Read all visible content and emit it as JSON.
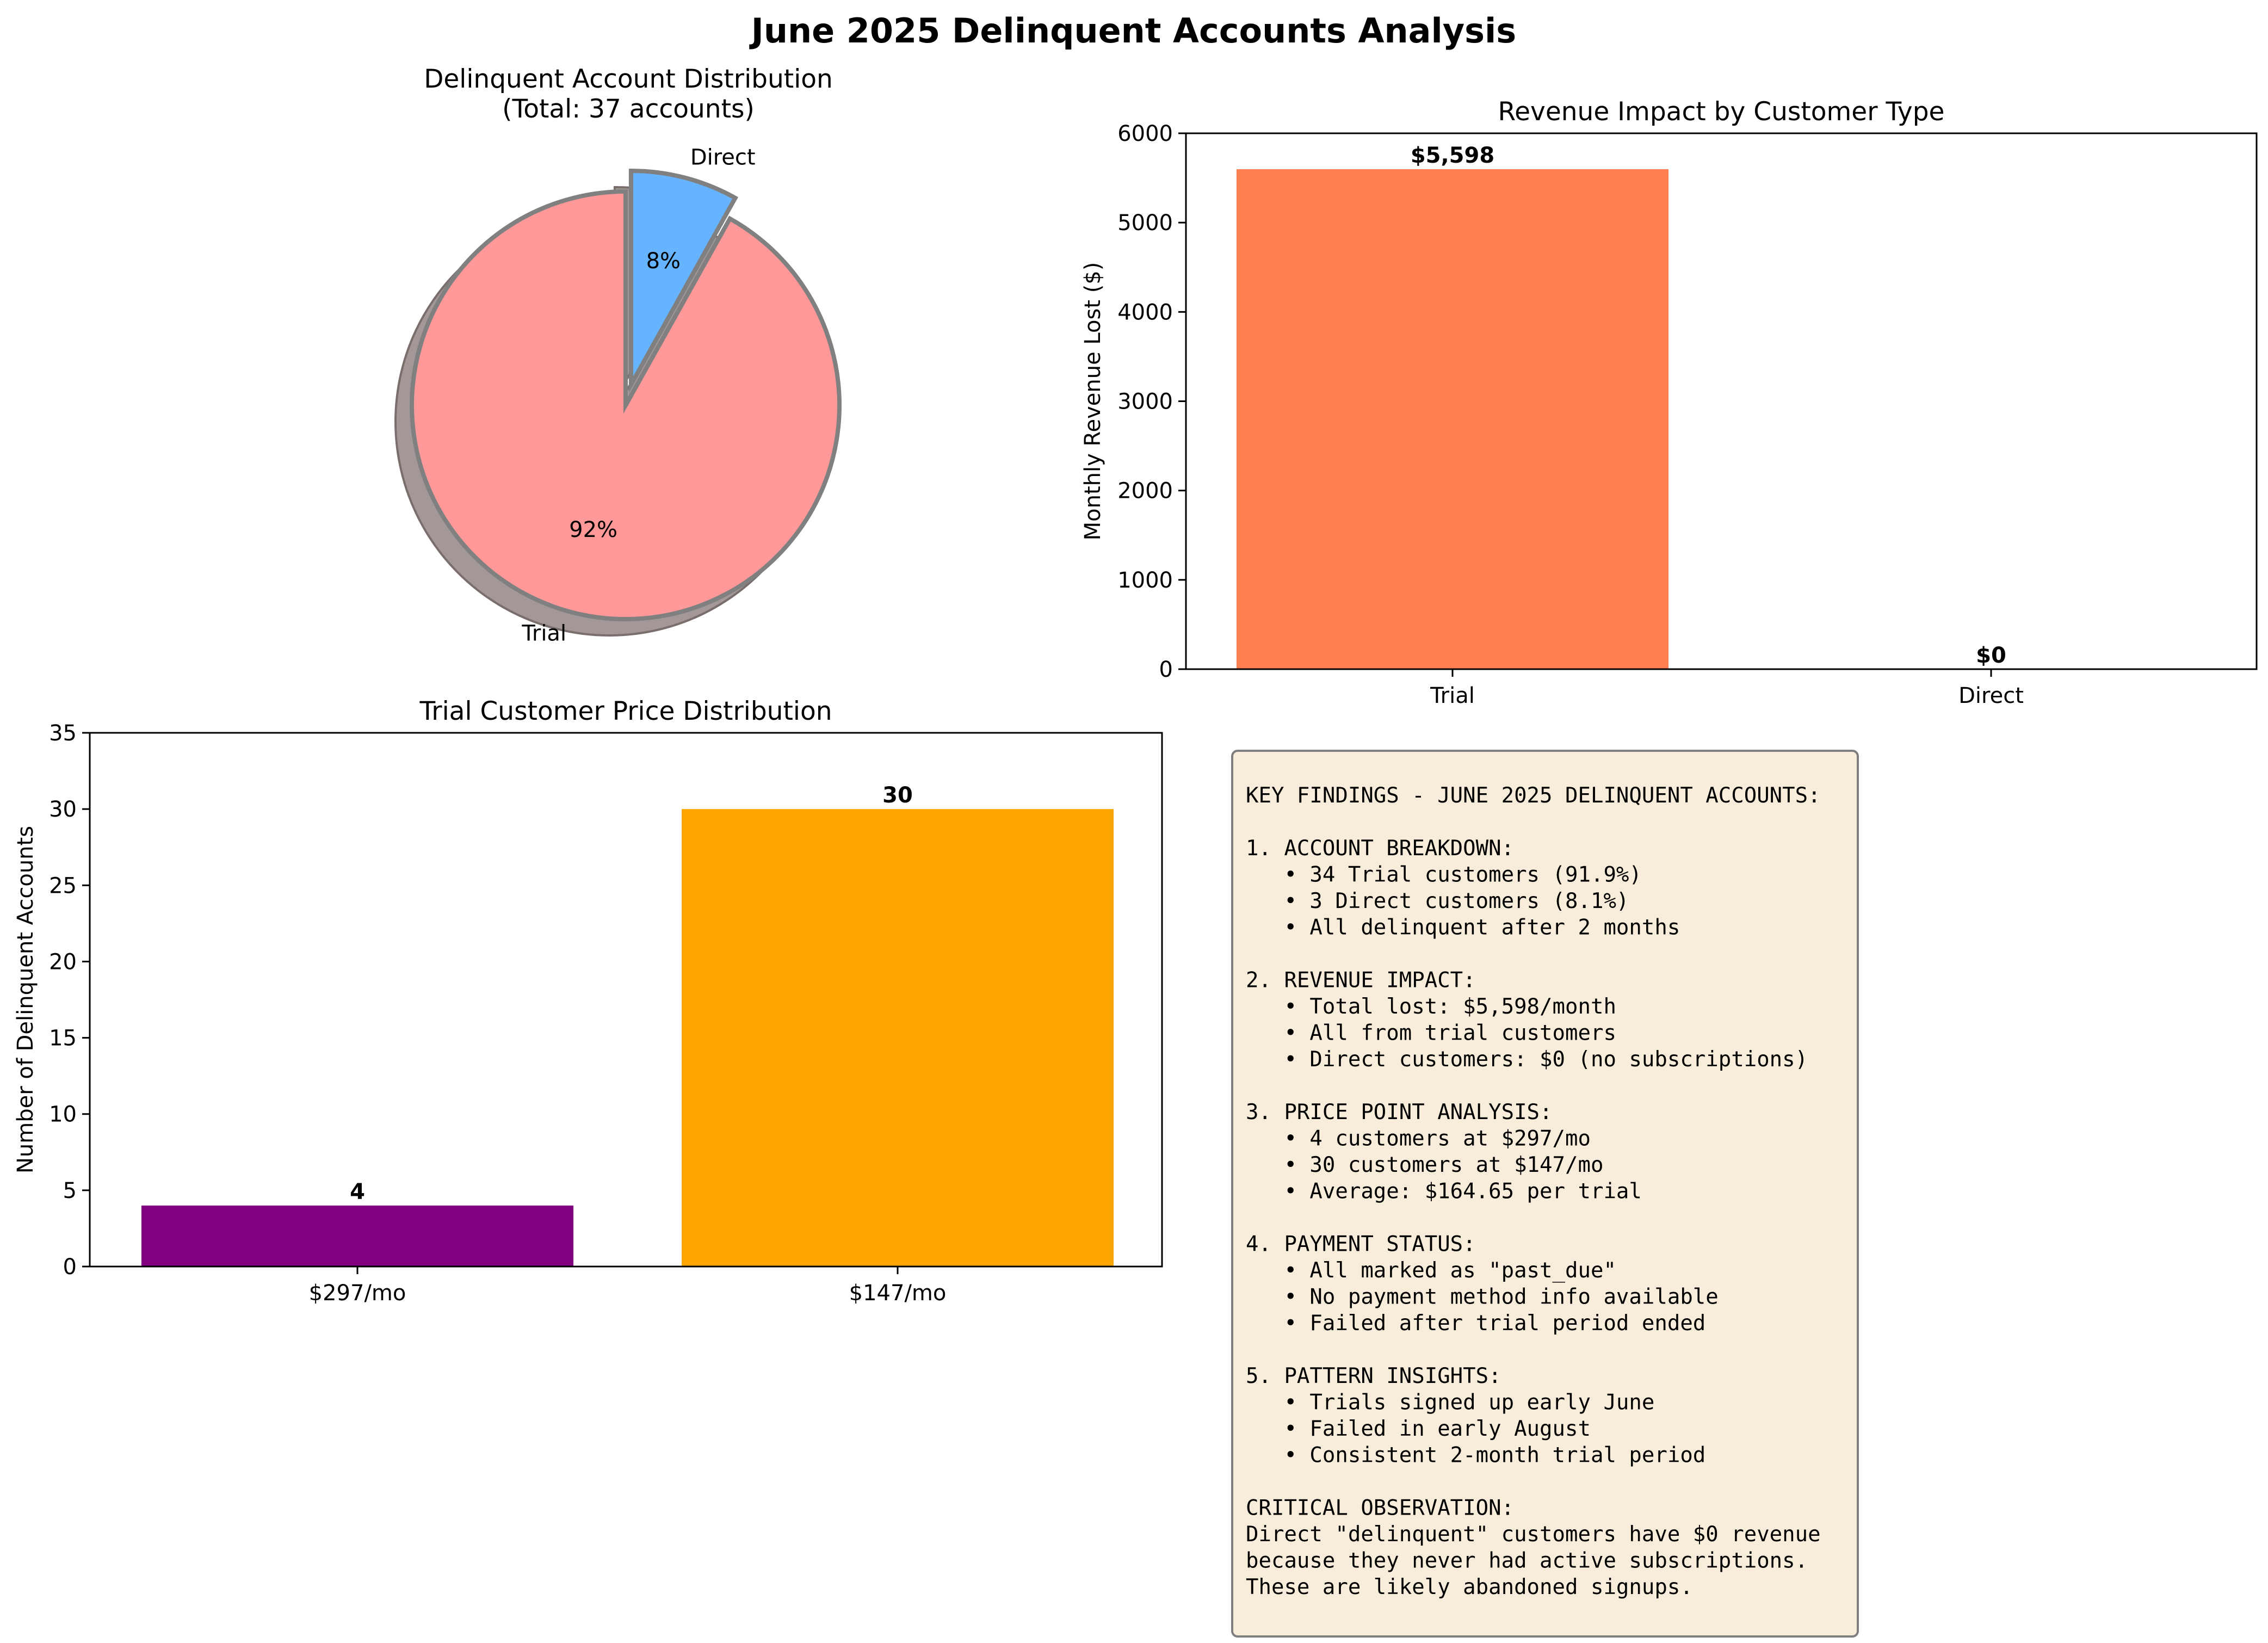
{
  "figure": {
    "title": "June 2025 Delinquent Accounts Analysis"
  },
  "colors": {
    "trial_slice": "#FF9999",
    "direct_slice": "#66B3FF",
    "shadow": "#A39897",
    "trial_revenue_bar": "#FF7F50",
    "price_297_bar": "#800080",
    "price_147_bar": "#FFA500",
    "findings_box_fill": "#F8EDDB",
    "findings_box_border": "#7F7F7F"
  },
  "chart_data": [
    {
      "type": "pie",
      "title": "Delinquent Account Distribution\n(Total: 37 accounts)",
      "categories": [
        "Trial",
        "Direct"
      ],
      "values": [
        34,
        3
      ],
      "percent_labels": [
        "92%",
        "8%"
      ],
      "exploded": [
        "Direct"
      ],
      "shadow": true
    },
    {
      "type": "bar",
      "title": "Revenue Impact by Customer Type",
      "categories": [
        "Trial",
        "Direct"
      ],
      "values": [
        5598,
        0
      ],
      "value_labels": [
        "$5,598",
        "$0"
      ],
      "xlabel": "",
      "ylabel": "Monthly Revenue Lost ($)",
      "ylim": [
        0,
        6000
      ],
      "yticks": [
        0,
        1000,
        2000,
        3000,
        4000,
        5000,
        6000
      ],
      "ytick_labels": [
        "0",
        "1000",
        "2000",
        "3000",
        "4000",
        "5000",
        "6000"
      ],
      "grid": false
    },
    {
      "type": "bar",
      "title": "Trial Customer Price Distribution",
      "categories": [
        "$297/mo",
        "$147/mo"
      ],
      "values": [
        4,
        30
      ],
      "value_labels": [
        "4",
        "30"
      ],
      "xlabel": "",
      "ylabel": "Number of Delinquent Accounts",
      "ylim": [
        0,
        35
      ],
      "yticks": [
        0,
        5,
        10,
        15,
        20,
        25,
        30,
        35
      ],
      "ytick_labels": [
        "0",
        "5",
        "10",
        "15",
        "20",
        "25",
        "30",
        "35"
      ],
      "grid": false
    }
  ],
  "findings": {
    "lines": [
      "KEY FINDINGS - JUNE 2025 DELINQUENT ACCOUNTS:",
      "",
      "1. ACCOUNT BREAKDOWN:",
      "   • 34 Trial customers (91.9%)",
      "   • 3 Direct customers (8.1%)",
      "   • All delinquent after 2 months",
      "",
      "2. REVENUE IMPACT:",
      "   • Total lost: $5,598/month",
      "   • All from trial customers",
      "   • Direct customers: $0 (no subscriptions)",
      "",
      "3. PRICE POINT ANALYSIS:",
      "   • 4 customers at $297/mo",
      "   • 30 customers at $147/mo",
      "   • Average: $164.65 per trial",
      "",
      "4. PAYMENT STATUS:",
      "   • All marked as \"past_due\"",
      "   • No payment method info available",
      "   • Failed after trial period ended",
      "",
      "5. PATTERN INSIGHTS:",
      "   • Trials signed up early June",
      "   • Failed in early August",
      "   • Consistent 2-month trial period",
      "",
      "CRITICAL OBSERVATION:",
      "Direct \"delinquent\" customers have $0 revenue",
      "because they never had active subscriptions.",
      "These are likely abandoned signups."
    ]
  }
}
